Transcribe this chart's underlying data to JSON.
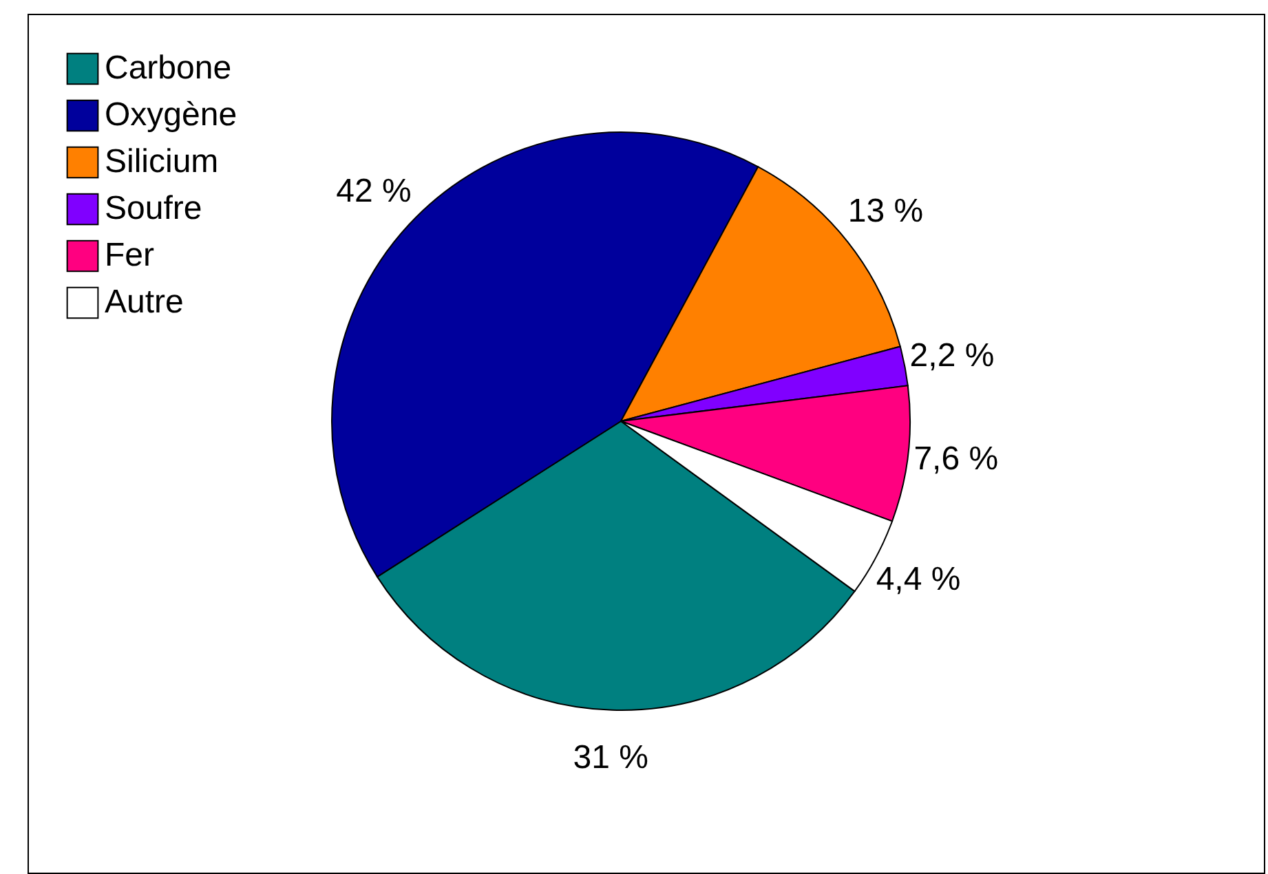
{
  "chart_data": {
    "type": "pie",
    "categories": [
      "Carbone",
      "Oxygène",
      "Silicium",
      "Soufre",
      "Fer",
      "Autre"
    ],
    "values": [
      31,
      42,
      13,
      2.2,
      7.6,
      4.4
    ],
    "value_labels": [
      "31 %",
      "42 %",
      "13 %",
      "2,2 %",
      "7,6 %",
      "4,4 %"
    ],
    "colors": [
      "#008080",
      "#00009c",
      "#ff8000",
      "#8000ff",
      "#ff0080",
      "#ffffff"
    ],
    "legend": "top left"
  }
}
